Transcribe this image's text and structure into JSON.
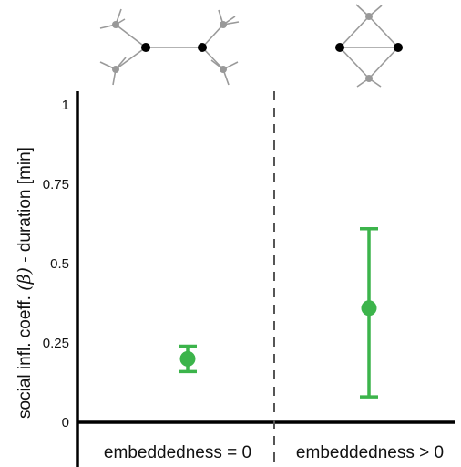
{
  "chart_data": {
    "type": "scatter",
    "ylabel_parts": [
      "social infl. coeff. ",
      "(β)",
      " - duration [min]"
    ],
    "ylim": [
      0,
      1
    ],
    "yticks": [
      0,
      0.25,
      0.5,
      0.75,
      1
    ],
    "ytick_labels": [
      "0",
      "0.25",
      "0.5",
      "0.75",
      "1"
    ],
    "categories": [
      "embeddedness = 0",
      "embeddedness > 0"
    ],
    "values": [
      0.2,
      0.36
    ],
    "error_low": [
      0.16,
      0.08
    ],
    "error_high": [
      0.24,
      0.61
    ],
    "divider": "dashed vertical line between categories",
    "grid": false,
    "colors": {
      "point": "#3cb44b",
      "axis": "#000000",
      "divider": "#555555",
      "node_primary": "#000000",
      "node_secondary": "#999999",
      "edge": "#9a9a9a"
    },
    "icons": [
      "tree-network-icon",
      "embedded-network-icon"
    ]
  }
}
